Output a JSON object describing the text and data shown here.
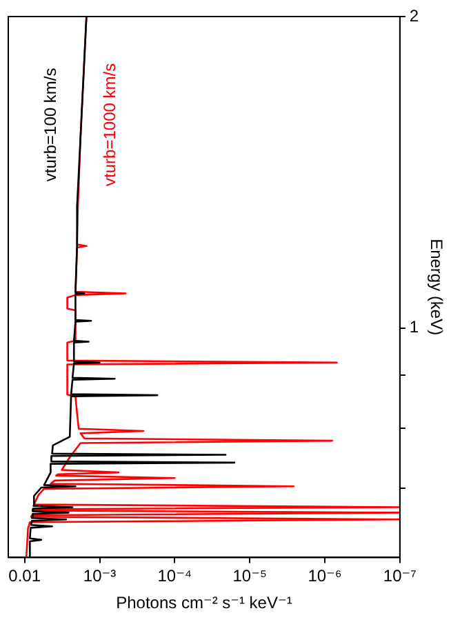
{
  "chart_data": {
    "type": "line",
    "xlabel": "Photons cm⁻² s⁻¹ keV⁻¹",
    "ylabel": "Energy (keV)",
    "log": "xy",
    "grid": false,
    "legend": false,
    "marker": "none",
    "line_style": "solid",
    "ylim": [
      0.6,
      2
    ],
    "yticks": [
      {
        "value": 0.7,
        "label": null
      },
      {
        "value": 0.8,
        "label": null
      },
      {
        "value": 0.9,
        "label": null
      },
      1,
      2
    ],
    "xlim": [
      0.0165,
      1e-07
    ],
    "xticks": [
      {
        "value": 0.01,
        "label": "0.01"
      },
      {
        "value": 0.001,
        "label": "10⁻³"
      },
      {
        "value": 0.0001,
        "label": "10⁻⁴"
      },
      {
        "value": 1e-05,
        "label": "10⁻⁵"
      },
      {
        "value": 1e-06,
        "label": "10⁻⁶"
      },
      {
        "value": 1e-07,
        "label": "10⁻⁷"
      }
    ],
    "series": [
      {
        "name": "vturb=100 km/s",
        "color": "#000000",
        "values": [
          0.6,
          0.622,
          0.624,
          0.626,
          0.641,
          0.643,
          0.645,
          0.651,
          0.653,
          0.655,
          0.661,
          0.663,
          0.665,
          0.669,
          0.671,
          0.673,
          0.688,
          0.701,
          0.703,
          0.705,
          0.725,
          0.739,
          0.741,
          0.743,
          0.752,
          0.754,
          0.756,
          0.77,
          0.785,
          0.859,
          0.861,
          0.863,
          0.891,
          0.893,
          0.895,
          0.924,
          0.926,
          0.928,
          0.968,
          0.97,
          0.972,
          1.014,
          1.016,
          1.018,
          1.078,
          1.08,
          1.082,
          1.2,
          1.31,
          1.527,
          2.0
        ],
        "x": [
          0.0085,
          0.0085,
          0.006,
          0.0085,
          0.0083,
          0.0043,
          0.0082,
          0.008,
          0.0028,
          0.008,
          0.0078,
          0.0026,
          0.0078,
          0.0077,
          0.0023,
          0.0076,
          0.0075,
          0.006,
          0.0021,
          0.0055,
          0.0045,
          0.0045,
          1.6e-05,
          0.0044,
          0.0044,
          2.1e-05,
          0.0043,
          0.0042,
          0.0025,
          0.0024,
          0.00017,
          0.0024,
          0.0023,
          0.00063,
          0.0023,
          0.0022,
          0.001,
          0.0022,
          0.0022,
          0.0014,
          0.0022,
          0.0021,
          0.0013,
          0.0021,
          0.0021,
          0.0016,
          0.0021,
          0.002,
          0.002,
          0.0018,
          0.0015
        ]
      },
      {
        "name": "vturb=1000 km/s",
        "color": "#ff0000",
        "values": [
          0.6,
          0.64,
          0.649,
          0.653,
          0.657,
          0.659,
          0.663,
          0.666,
          0.668,
          0.671,
          0.675,
          0.69,
          0.699,
          0.703,
          0.707,
          0.712,
          0.716,
          0.72,
          0.722,
          0.725,
          0.729,
          0.75,
          0.774,
          0.778,
          0.782,
          0.791,
          0.795,
          0.799,
          0.827,
          0.858,
          0.862,
          0.922,
          0.926,
          0.93,
          0.968,
          0.972,
          1.04,
          1.044,
          1.07,
          1.076,
          1.08,
          1.084,
          1.196,
          1.2,
          1.204,
          1.31,
          1.527,
          2.0
        ],
        "x": [
          0.0095,
          0.009,
          0.0085,
          1e-07,
          0.0082,
          0.008,
          1e-07,
          0.0078,
          0.0078,
          1e-07,
          0.0075,
          0.0065,
          0.0055,
          2.6e-06,
          0.0045,
          0.004,
          0.0001,
          0.0038,
          0.0036,
          0.00056,
          0.0032,
          0.0025,
          0.0018,
          8e-07,
          0.0016,
          0.0018,
          0.00026,
          0.0019,
          0.002,
          0.0021,
          0.0027,
          0.0027,
          6.9e-07,
          0.0027,
          0.0027,
          0.0021,
          0.0021,
          0.0027,
          0.0027,
          0.0021,
          0.00045,
          0.0021,
          0.002,
          0.0015,
          0.002,
          0.00195,
          0.0018,
          0.0015
        ]
      }
    ]
  }
}
